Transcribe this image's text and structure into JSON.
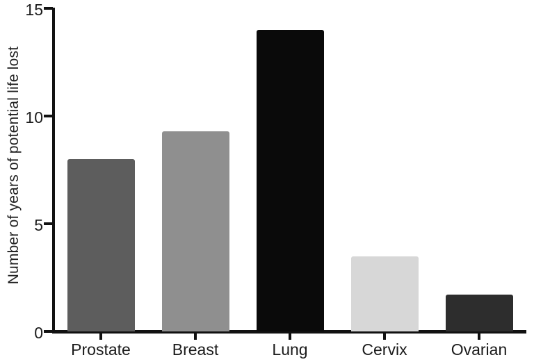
{
  "chart_data": {
    "type": "bar",
    "title": "",
    "categories": [
      "Prostate",
      "Breast",
      "Lung",
      "Cervix",
      "Ovarian"
    ],
    "values": [
      8.0,
      9.3,
      14.0,
      3.5,
      1.7
    ],
    "bar_colors": [
      "#5d5d5d",
      "#8f8f8f",
      "#0a0a0a",
      "#d7d7d7",
      "#2d2d2d"
    ],
    "xlabel": "",
    "ylabel": "Number of years of potential life lost",
    "ylim": [
      0,
      15
    ],
    "yticks": [
      0,
      5,
      10,
      15
    ],
    "grid": false,
    "legend": "none",
    "axis_color": "#111111",
    "background": "#ffffff"
  }
}
